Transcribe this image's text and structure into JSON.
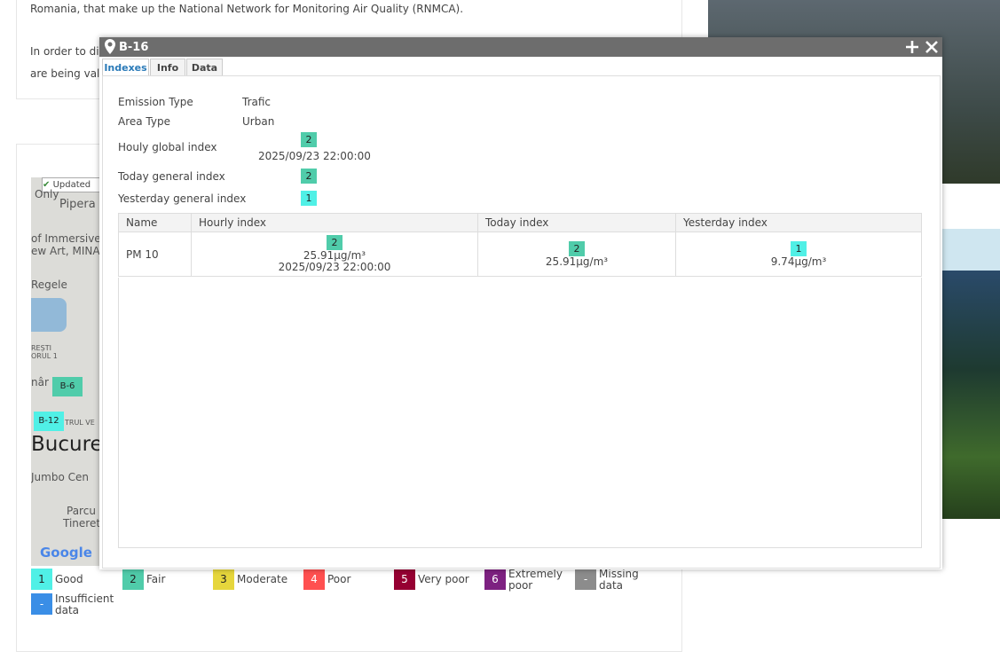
{
  "background": {
    "intro": "Romania, that make up the National Network for Monitoring Air Quality (RNMCA).",
    "para_line1": "In order to di",
    "para_line2": "are being vali"
  },
  "map": {
    "updated": "Updated",
    "labels": [
      "Only",
      "Pipera",
      "of Immersive",
      "ew Art, MINA",
      "Regele",
      "REȘTI",
      "ORUL 1",
      "nâr",
      "TRUL VE",
      "Bucure",
      "Jumbo Cen",
      "Parcu",
      "Tineretu"
    ],
    "markers": [
      "B-6",
      "B-12"
    ],
    "google": "Google"
  },
  "legend": [
    {
      "index": 1,
      "label": "Good",
      "color": "#50f0e6"
    },
    {
      "index": 2,
      "label": "Fair",
      "color": "#50ccaa"
    },
    {
      "index": 3,
      "label": "Moderate",
      "color": "#e6d63c"
    },
    {
      "index": 4,
      "label": "Poor",
      "color": "#ff5050"
    },
    {
      "index": 5,
      "label": "Very poor",
      "color": "#960032"
    },
    {
      "index": 6,
      "label": "Extremely poor",
      "color": "#7d2181"
    },
    {
      "index": "-",
      "label": "Missing data",
      "color": "#8c8c8c"
    },
    {
      "index": "-",
      "label": "Insufficient data",
      "color": "#3a8ee6"
    }
  ],
  "dialog": {
    "title": "B-16",
    "tabs": [
      "Indexes",
      "Info",
      "Data"
    ],
    "emission": {
      "label": "Emission Type",
      "value": "Trafic"
    },
    "area": {
      "label": "Area Type",
      "value": "Urban"
    },
    "hourly": {
      "label": "Houly global index",
      "index": 2,
      "time": "2025/09/23 22:00:00"
    },
    "today": {
      "label": "Today general index",
      "index": 2
    },
    "yesterday": {
      "label": "Yesterday general index",
      "index": 1
    },
    "table": {
      "columns": [
        "Name",
        "Hourly index",
        "Today index",
        "Yesterday index"
      ],
      "rows": [
        {
          "name": "PM 10",
          "hourly": {
            "index": 2,
            "value": "25.91µg/m³",
            "time": "2025/09/23 22:00:00"
          },
          "today": {
            "index": 2,
            "value": "25.91µg/m³"
          },
          "yesterday": {
            "index": 1,
            "value": "9.74µg/m³"
          }
        }
      ]
    }
  }
}
